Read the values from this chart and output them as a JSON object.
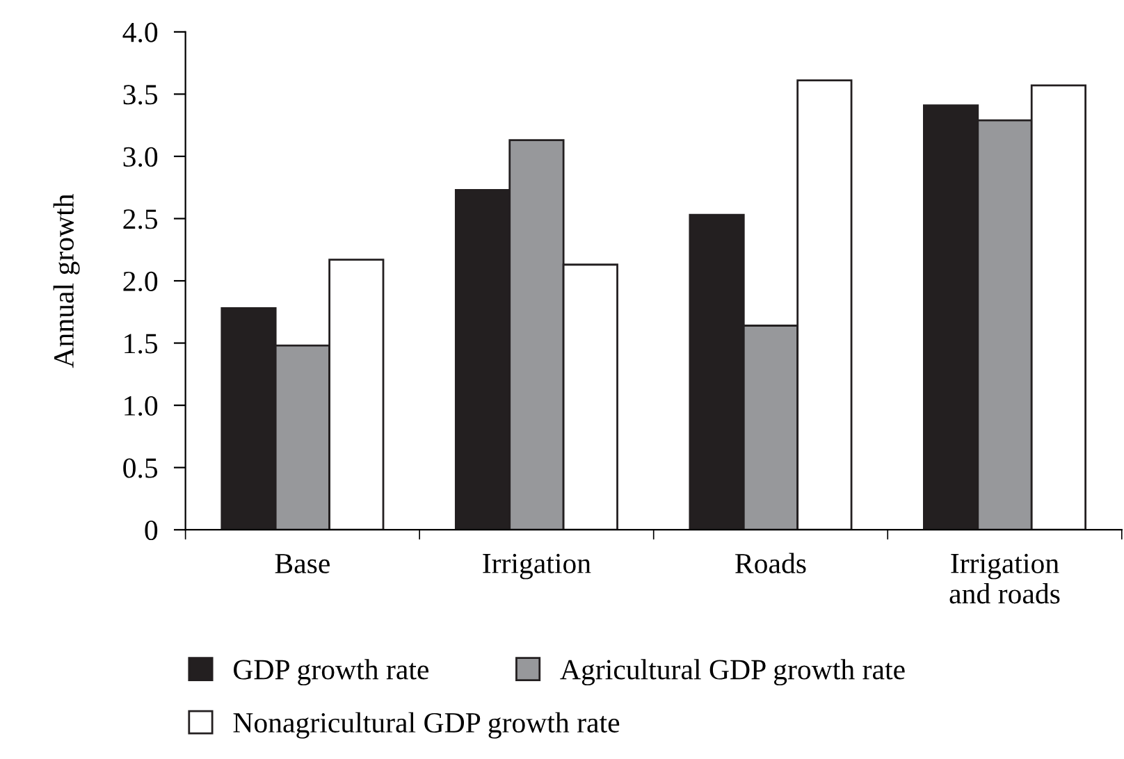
{
  "chart_data": {
    "type": "bar",
    "ylabel": "Annual growth",
    "categories": [
      "Base",
      "Irrigation",
      "Roads",
      "Irrigation\nand roads"
    ],
    "series": [
      {
        "name": "GDP growth rate",
        "color": "#231f20",
        "values": [
          1.78,
          2.73,
          2.53,
          3.41
        ]
      },
      {
        "name": "Agricultural GDP growth rate",
        "color": "#97989b",
        "values": [
          1.48,
          3.13,
          1.64,
          3.29
        ]
      },
      {
        "name": "Nonagricultural GDP growth rate",
        "color": "#ffffff",
        "values": [
          2.17,
          2.13,
          3.61,
          3.57
        ]
      }
    ],
    "ylim": [
      0,
      4.0
    ],
    "yticks": [
      {
        "value": 0,
        "label": "0"
      },
      {
        "value": 0.5,
        "label": "0.5"
      },
      {
        "value": 1.0,
        "label": "1.0"
      },
      {
        "value": 1.5,
        "label": "1.5"
      },
      {
        "value": 2.0,
        "label": "2.0"
      },
      {
        "value": 2.5,
        "label": "2.5"
      },
      {
        "value": 3.0,
        "label": "3.0"
      },
      {
        "value": 3.5,
        "label": "3.5"
      },
      {
        "value": 4.0,
        "label": "4.0"
      }
    ],
    "legend": "bottom",
    "grid": false
  }
}
